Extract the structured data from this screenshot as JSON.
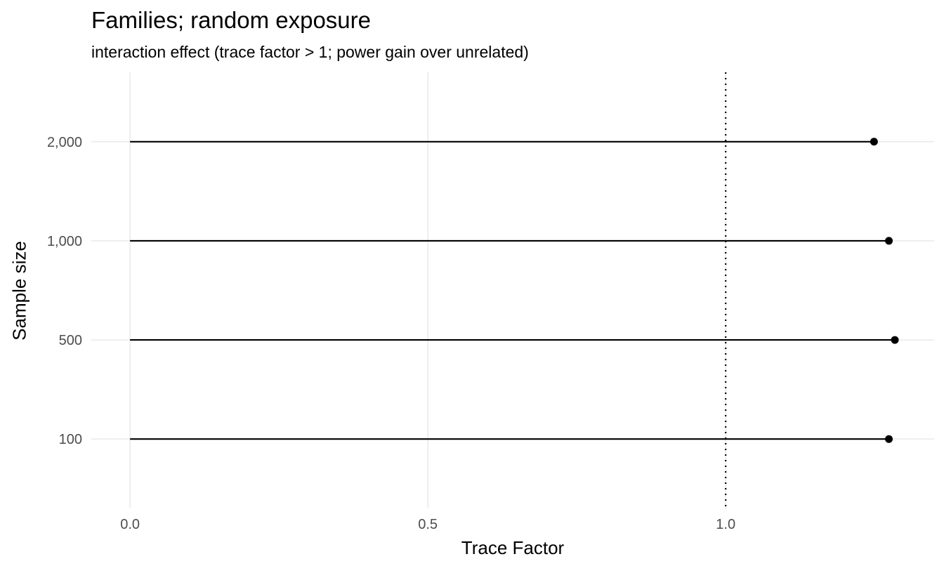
{
  "chart_data": {
    "type": "lollipop",
    "title": "Families; random exposure",
    "subtitle": "interaction effect (trace factor > 1; power gain over unrelated)",
    "xlabel": "Trace Factor",
    "ylabel": "Sample size",
    "categories": [
      "100",
      "500",
      "1,000",
      "2,000"
    ],
    "values": [
      1.274,
      1.284,
      1.274,
      1.249
    ],
    "x_ticks": [
      0.0,
      0.5,
      1.0
    ],
    "x_tick_labels": [
      "0.0",
      "0.5",
      "1.0"
    ],
    "xlim": [
      -0.065,
      1.35
    ],
    "reference_line": {
      "x": 1.0,
      "style": "dotted"
    },
    "grid": true,
    "colors": {
      "segment": "#000000",
      "point": "#000000",
      "grid": "#ebebeb",
      "text": "#4d4d4d"
    }
  }
}
